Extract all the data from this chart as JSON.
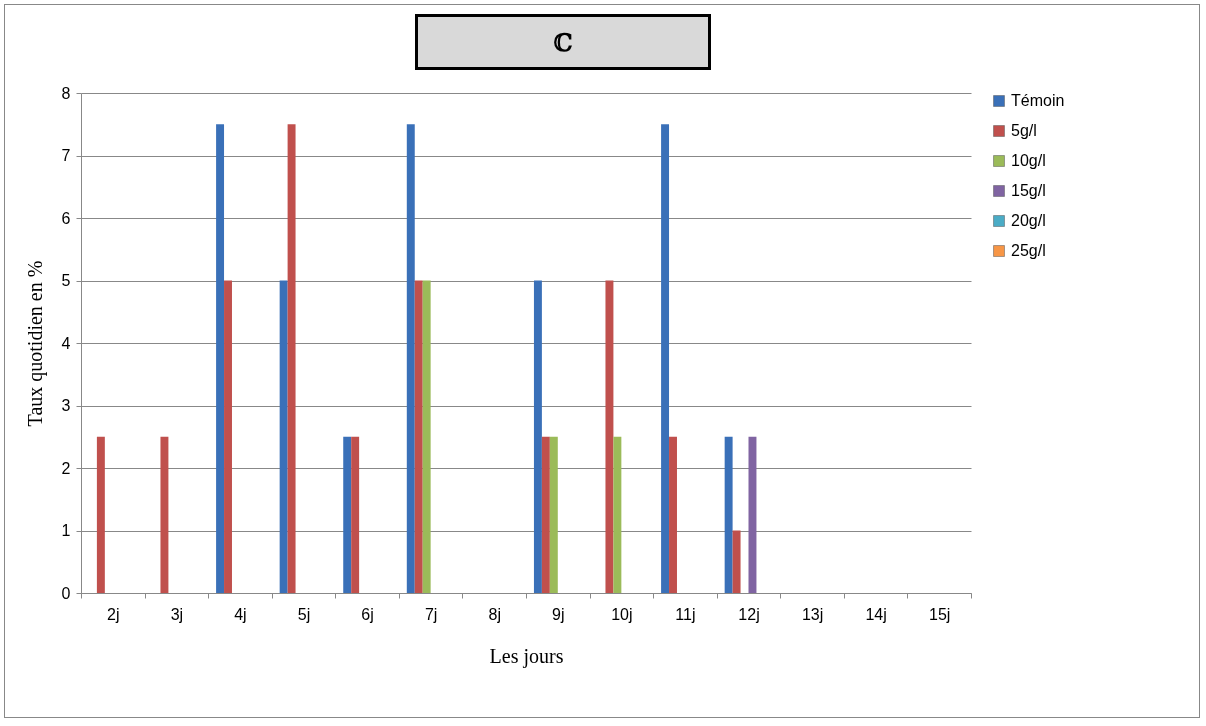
{
  "chart_data": {
    "type": "bar",
    "title": "ℂ",
    "xlabel": "Les jours",
    "ylabel": "Taux quotidien en %",
    "categories": [
      "2j",
      "3j",
      "4j",
      "5j",
      "6j",
      "7j",
      "8j",
      "9j",
      "10j",
      "11j",
      "12j",
      "13j",
      "14j",
      "15j"
    ],
    "series": [
      {
        "name": "Témoin",
        "color": "#3a70b8",
        "values": [
          0,
          0,
          7.5,
          5,
          2.5,
          7.5,
          0,
          5,
          0,
          7.5,
          2.5,
          0,
          0,
          0
        ]
      },
      {
        "name": "5g/l",
        "color": "#c0504d",
        "values": [
          2.5,
          2.5,
          5,
          7.5,
          2.5,
          5,
          0,
          2.5,
          5,
          2.5,
          1,
          0,
          0,
          0
        ]
      },
      {
        "name": "10g/l",
        "color": "#9bbb59",
        "values": [
          0,
          0,
          0,
          0,
          0,
          5,
          0,
          2.5,
          2.5,
          0,
          0,
          0,
          0,
          0
        ]
      },
      {
        "name": "15g/l",
        "color": "#8064a2",
        "values": [
          0,
          0,
          0,
          0,
          0,
          0,
          0,
          0,
          0,
          0,
          2.5,
          0,
          0,
          0
        ]
      },
      {
        "name": "20g/l",
        "color": "#4bacc6",
        "values": [
          0,
          0,
          0,
          0,
          0,
          0,
          0,
          0,
          0,
          0,
          0,
          0,
          0,
          0
        ]
      },
      {
        "name": "25g/l",
        "color": "#f79646",
        "values": [
          0,
          0,
          0,
          0,
          0,
          0,
          0,
          0,
          0,
          0,
          0,
          0,
          0,
          0
        ]
      }
    ],
    "ylim": [
      0,
      8
    ],
    "yticks": [
      0,
      1,
      2,
      3,
      4,
      5,
      6,
      7,
      8
    ],
    "grid": "y",
    "legend": "right"
  }
}
